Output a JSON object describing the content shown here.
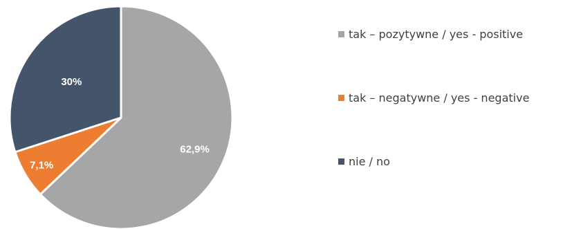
{
  "chart_data": {
    "type": "pie",
    "categories": [
      "tak – pozytywne / yes - positive",
      "tak – negatywne / yes - negative",
      "nie / no"
    ],
    "values": [
      62.9,
      7.1,
      30
    ],
    "labels": [
      "62,9%",
      "7,1%",
      "30%"
    ],
    "colors": [
      "#a6a6a6",
      "#ed7d31",
      "#44546a"
    ],
    "legend_position": "right",
    "start_angle": "top, clockwise"
  },
  "legend": {
    "items": [
      {
        "label": "tak – pozytywne / yes - positive",
        "color": "#a6a6a6"
      },
      {
        "label": "tak – negatywne / yes - negative",
        "color": "#ed7d31"
      },
      {
        "label": "nie / no",
        "color": "#44546a"
      }
    ]
  }
}
